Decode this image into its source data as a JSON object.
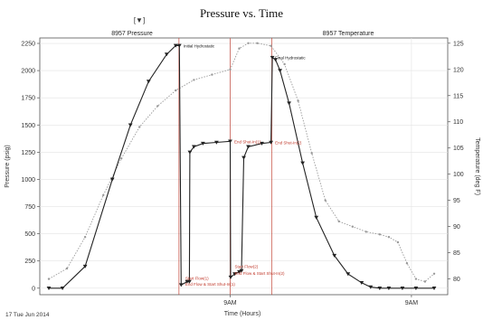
{
  "chart_data": {
    "type": "line",
    "title": "Pressure vs. Time",
    "xlabel": "Time (Hours)",
    "ylabel": "Pressure (psig)",
    "y2label": "Temperature (deg F)",
    "date_label": "17 Tue Jun 2014",
    "x_tick_labels": [
      {
        "t": 4.0,
        "label": "9AM"
      },
      {
        "t": 8.0,
        "label": "9AM"
      }
    ],
    "ylim": [
      -60,
      2300
    ],
    "y_ticks": [
      0,
      250,
      500,
      750,
      1000,
      1250,
      1500,
      1750,
      2000,
      2250
    ],
    "y2lim": [
      77,
      126
    ],
    "y2_ticks": [
      80,
      85,
      90,
      95,
      100,
      105,
      110,
      115,
      120,
      125
    ],
    "xlim": [
      -0.2,
      8.8
    ],
    "legend": [
      "8957 Pressure",
      "8957 Temperature"
    ],
    "legend_position": "top",
    "vertical_markers": [
      {
        "t": 2.87,
        "color": "#c0392b"
      },
      {
        "t": 4.0,
        "color": "#c0392b"
      },
      {
        "t": 4.92,
        "color": "#c0392b"
      }
    ],
    "series": [
      {
        "name": "8957 Pressure",
        "axis": "left",
        "color": "#222222",
        "marker": "triangle-down",
        "x": [
          0.0,
          0.3,
          0.8,
          1.4,
          1.8,
          2.2,
          2.6,
          2.8,
          2.88,
          2.92,
          3.05,
          3.1,
          3.11,
          3.2,
          3.4,
          3.7,
          4.0,
          4.01,
          4.1,
          4.2,
          4.25,
          4.3,
          4.4,
          4.7,
          4.9,
          4.93,
          5.0,
          5.1,
          5.3,
          5.6,
          5.9,
          6.3,
          6.6,
          6.9,
          7.1,
          7.3,
          7.5,
          7.8,
          8.1,
          8.5
        ],
        "y": [
          0,
          0,
          200,
          1000,
          1500,
          1900,
          2150,
          2230,
          2230,
          30,
          60,
          60,
          1250,
          1300,
          1330,
          1340,
          1350,
          100,
          130,
          150,
          160,
          1200,
          1300,
          1330,
          1340,
          2120,
          2100,
          2000,
          1700,
          1150,
          650,
          300,
          130,
          50,
          10,
          0,
          0,
          0,
          0,
          0
        ]
      },
      {
        "name": "8957 Temperature",
        "axis": "right",
        "color": "#999999",
        "marker": "dot",
        "x": [
          0.0,
          0.4,
          0.8,
          1.2,
          1.6,
          2.0,
          2.4,
          2.8,
          3.2,
          3.6,
          4.0,
          4.2,
          4.4,
          4.6,
          4.9,
          5.2,
          5.5,
          5.8,
          6.1,
          6.4,
          6.7,
          7.0,
          7.3,
          7.5,
          7.7,
          7.9,
          8.1,
          8.3,
          8.5
        ],
        "y": [
          80,
          82,
          88,
          96,
          103,
          109,
          113,
          116,
          118,
          119,
          120,
          124,
          125,
          125,
          124.5,
          121,
          114,
          104,
          95,
          91,
          90,
          89,
          88.5,
          88,
          87,
          83,
          80,
          79.5,
          81
        ]
      }
    ],
    "annotations": [
      {
        "t": 2.93,
        "v": 2230,
        "text": "Initial Hydrostatic",
        "color": "black"
      },
      {
        "t": 4.95,
        "v": 2120,
        "text": "Final Hydrostatic",
        "color": "black"
      },
      {
        "t": 4.05,
        "v": 1350,
        "text": "End Shut-In(1)",
        "color": "red"
      },
      {
        "t": 4.95,
        "v": 1340,
        "text": "End Shut-In(2)",
        "color": "red"
      },
      {
        "t": 2.97,
        "v": 95,
        "text": "Start Flow(1)",
        "color": "red"
      },
      {
        "t": 2.97,
        "v": 40,
        "text": "End Flow & Start Shut-In(1)",
        "color": "red"
      },
      {
        "t": 4.06,
        "v": 200,
        "text": "Start Flow(2)",
        "color": "red"
      },
      {
        "t": 4.06,
        "v": 140,
        "text": "End Flow & Start Shut-In(2)",
        "color": "red"
      }
    ]
  }
}
